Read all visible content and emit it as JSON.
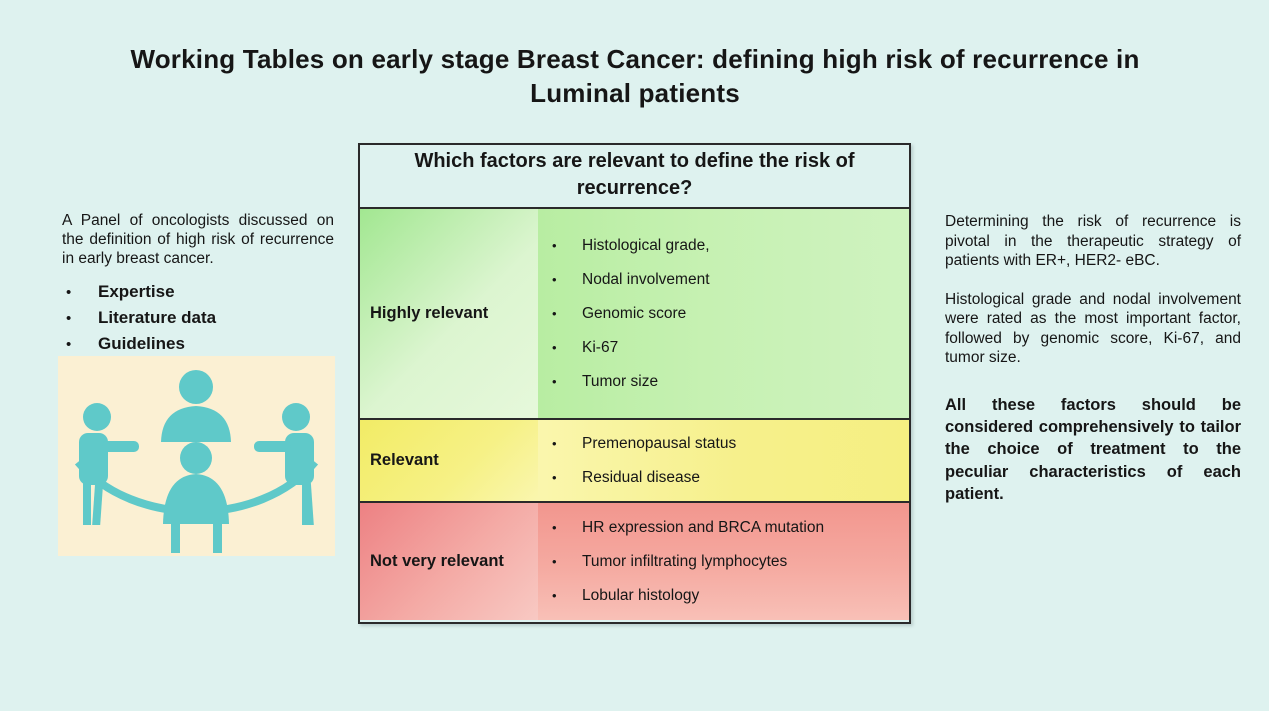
{
  "page": {
    "background_color": "#def2ef",
    "text_color": "#161616"
  },
  "title": "Working Tables on early stage Breast Cancer: defining high risk of recurrence in Luminal patients",
  "left_panel": {
    "intro": "A Panel of oncologists discussed on the definition of high risk of recurrence in early breast cancer.",
    "bullets": [
      "Expertise",
      "Literature data",
      "Guidelines"
    ],
    "bullet_glyph": "•",
    "illustration": {
      "name": "oncologist-panel-round-table",
      "figure_color": "#5fc9c9",
      "background_color": "#fbf0d3",
      "people_count": 4
    }
  },
  "table": {
    "header": "Which factors are relevant to define the risk of recurrence?",
    "bullet_glyph": "•",
    "rows": [
      {
        "label": "Highly relevant",
        "level": "high",
        "color": "#b8eda2",
        "items": [
          "Histological grade,",
          "Nodal involvement",
          "Genomic score",
          "Ki-67",
          "Tumor size"
        ]
      },
      {
        "label": "Relevant",
        "level": "medium",
        "color": "#f5ef82",
        "items": [
          "Premenopausal status",
          "Residual disease"
        ]
      },
      {
        "label": "Not very relevant",
        "level": "low",
        "color": "#f2968e",
        "items": [
          "HR expression and BRCA mutation",
          "Tumor infiltrating lymphocytes",
          "Lobular histology"
        ]
      }
    ]
  },
  "right_panel": {
    "paragraph_1": "Determining the risk of recurrence is pivotal in the therapeutic strategy of patients with ER+, HER2- eBC.",
    "paragraph_2": "Histological grade and nodal involvement were rated as the most important factor, followed by genomic score, Ki-67, and tumor size.",
    "paragraph_3": "All these factors should be considered comprehensively to tailor the choice of treatment to the peculiar characteristics of each patient."
  }
}
